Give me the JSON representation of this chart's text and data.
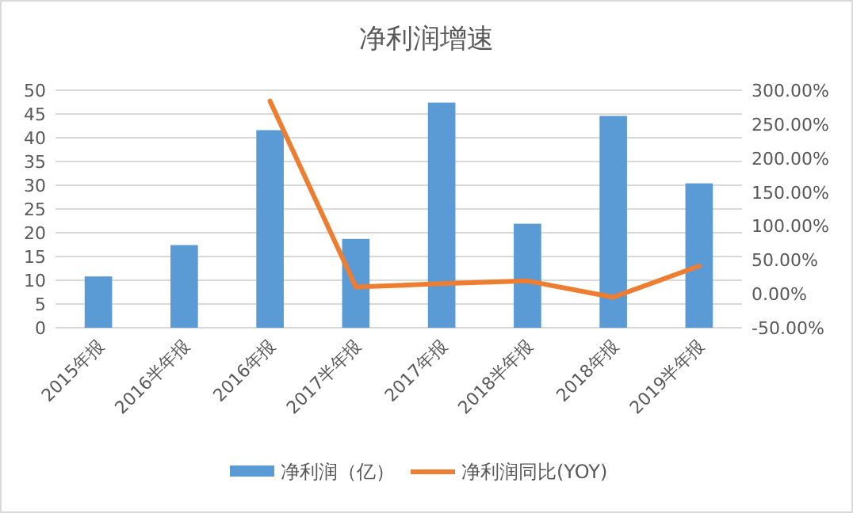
{
  "chart_data": {
    "type": "bar",
    "title": "净利润增速",
    "categories": [
      "2015年报",
      "2016半年报",
      "2016年报",
      "2017半年报",
      "2017年报",
      "2018半年报",
      "2018年报",
      "2019半年报"
    ],
    "series": [
      {
        "name": "净利润（亿）",
        "color": "#5b9bd5",
        "values": [
          10.8,
          17.4,
          41.6,
          18.7,
          47.4,
          21.9,
          44.6,
          30.4
        ]
      },
      {
        "name": "净利润同比(YOY)",
        "type": "line",
        "axis": "y2",
        "color": "#ed7d31",
        "values": [
          null,
          null,
          284,
          10,
          15,
          19,
          -5,
          41
        ]
      }
    ],
    "ylim": [
      0,
      50
    ],
    "yticks": [
      0,
      5,
      10,
      15,
      20,
      25,
      30,
      35,
      40,
      45,
      50
    ],
    "y2lim": [
      -50,
      300
    ],
    "y2ticks": [
      {
        "value": -50,
        "label": "-50.00%"
      },
      {
        "value": 0,
        "label": "0.00%"
      },
      {
        "value": 50,
        "label": "50.00%"
      },
      {
        "value": 100,
        "label": "100.00%"
      },
      {
        "value": 150,
        "label": "150.00%"
      },
      {
        "value": 200,
        "label": "200.00%"
      },
      {
        "value": 250,
        "label": "250.00%"
      },
      {
        "value": 300,
        "label": "300.00%"
      }
    ],
    "grid": "y",
    "legend": "bottom",
    "marker": "none",
    "line_style": "solid"
  }
}
